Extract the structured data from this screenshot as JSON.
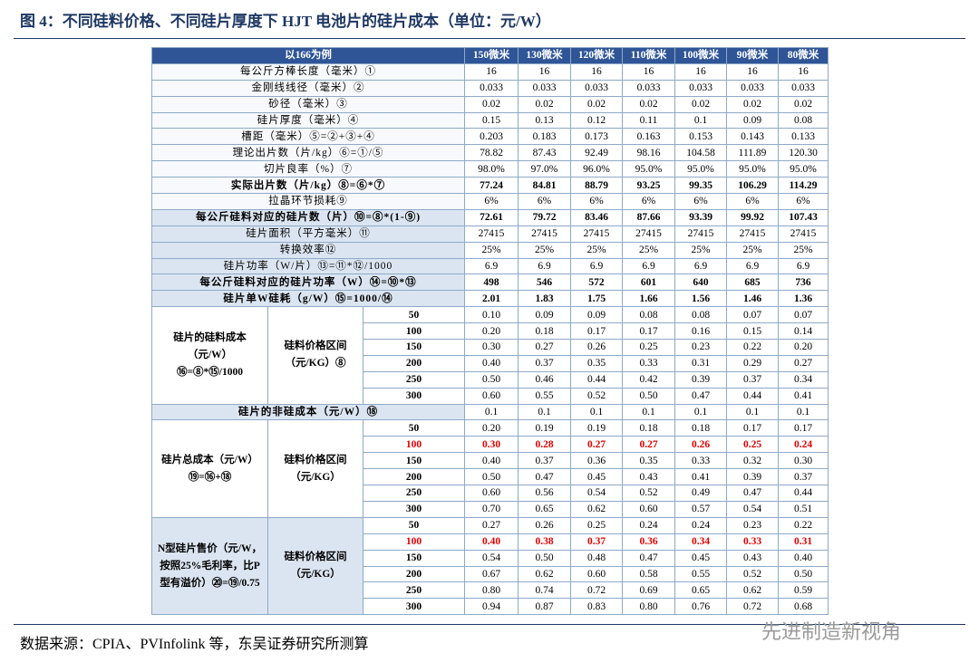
{
  "title": "图 4：不同硅料价格、不同硅片厚度下 HJT 电池片的硅片成本（单位：元/W）",
  "table": {
    "header": {
      "label": "以166为例",
      "columns": [
        "150微米",
        "130微米",
        "120微米",
        "110微米",
        "100微米",
        "90微米",
        "80微米"
      ]
    },
    "rows": [
      {
        "label": "每公斤方棒长度（毫米）①",
        "values": [
          "16",
          "16",
          "16",
          "16",
          "16",
          "16",
          "16"
        ]
      },
      {
        "label": "金刚线线径（毫米）②",
        "values": [
          "0.033",
          "0.033",
          "0.033",
          "0.033",
          "0.033",
          "0.033",
          "0.033"
        ]
      },
      {
        "label": "砂径（毫米）③",
        "values": [
          "0.02",
          "0.02",
          "0.02",
          "0.02",
          "0.02",
          "0.02",
          "0.02"
        ]
      },
      {
        "label": "硅片厚度（毫米）④",
        "values": [
          "0.15",
          "0.13",
          "0.12",
          "0.11",
          "0.1",
          "0.09",
          "0.08"
        ]
      },
      {
        "label": "槽距（毫米）⑤=②+③+④",
        "values": [
          "0.203",
          "0.183",
          "0.173",
          "0.163",
          "0.153",
          "0.143",
          "0.133"
        ]
      },
      {
        "label": "理论出片数（片/kg）⑥=①/⑤",
        "values": [
          "78.82",
          "87.43",
          "92.49",
          "98.16",
          "104.58",
          "111.89",
          "120.30"
        ]
      },
      {
        "label": "切片良率（%）⑦",
        "values": [
          "98.0%",
          "97.0%",
          "96.0%",
          "95.0%",
          "95.0%",
          "95.0%",
          "95.0%"
        ]
      },
      {
        "label": "实际出片数（片/kg）⑧=⑥*⑦",
        "values": [
          "77.24",
          "84.81",
          "88.79",
          "93.25",
          "99.35",
          "106.29",
          "114.29"
        ]
      },
      {
        "label": "拉晶环节损耗⑨",
        "values": [
          "6%",
          "6%",
          "6%",
          "6%",
          "6%",
          "6%",
          "6%"
        ]
      },
      {
        "label": "每公斤硅料对应的硅片数（片）⑩=⑧*(1-⑨)",
        "values": [
          "72.61",
          "79.72",
          "83.46",
          "87.66",
          "93.39",
          "99.92",
          "107.43"
        ]
      },
      {
        "label": "硅片面积（平方毫米）⑪",
        "values": [
          "27415",
          "27415",
          "27415",
          "27415",
          "27415",
          "27415",
          "27415"
        ]
      },
      {
        "label": "转换效率⑫",
        "values": [
          "25%",
          "25%",
          "25%",
          "25%",
          "25%",
          "25%",
          "25%"
        ]
      },
      {
        "label": "硅片功率（W/片）⑬=⑪*⑫/1000",
        "values": [
          "6.9",
          "6.9",
          "6.9",
          "6.9",
          "6.9",
          "6.9",
          "6.9"
        ]
      },
      {
        "label": "每公斤硅料对应的硅片功率（W）⑭=⑩*⑬",
        "values": [
          "498",
          "546",
          "572",
          "601",
          "640",
          "685",
          "736"
        ]
      },
      {
        "label": "硅片单W硅耗（g/W）⑮=1000/⑭",
        "values": [
          "2.01",
          "1.83",
          "1.75",
          "1.66",
          "1.56",
          "1.46",
          "1.36"
        ]
      }
    ],
    "silicon_cost": {
      "label": "硅片的硅料成本（元/W）⑯=⑧*⑮/1000",
      "range_label": "硅料价格区间（元/KG）⑧",
      "rows": [
        {
          "price": "50",
          "values": [
            "0.10",
            "0.09",
            "0.09",
            "0.08",
            "0.08",
            "0.07",
            "0.07"
          ]
        },
        {
          "price": "100",
          "values": [
            "0.20",
            "0.18",
            "0.17",
            "0.17",
            "0.16",
            "0.15",
            "0.14"
          ]
        },
        {
          "price": "150",
          "values": [
            "0.30",
            "0.27",
            "0.26",
            "0.25",
            "0.23",
            "0.22",
            "0.20"
          ]
        },
        {
          "price": "200",
          "values": [
            "0.40",
            "0.37",
            "0.35",
            "0.33",
            "0.31",
            "0.29",
            "0.27"
          ]
        },
        {
          "price": "250",
          "values": [
            "0.50",
            "0.46",
            "0.44",
            "0.42",
            "0.39",
            "0.37",
            "0.34"
          ]
        },
        {
          "price": "300",
          "values": [
            "0.60",
            "0.55",
            "0.52",
            "0.50",
            "0.47",
            "0.44",
            "0.41"
          ]
        }
      ]
    },
    "non_silicon": {
      "label": "硅片的非硅成本（元/W）⑱",
      "values": [
        "0.1",
        "0.1",
        "0.1",
        "0.1",
        "0.1",
        "0.1",
        "0.1"
      ]
    },
    "total_cost": {
      "label": "硅片总成本（元/W）⑲=⑯+⑱",
      "range_label": "硅料价格区间（元/KG）",
      "rows": [
        {
          "price": "50",
          "values": [
            "0.20",
            "0.19",
            "0.19",
            "0.18",
            "0.18",
            "0.17",
            "0.17"
          ]
        },
        {
          "price": "100",
          "values": [
            "0.30",
            "0.28",
            "0.27",
            "0.27",
            "0.26",
            "0.25",
            "0.24"
          ]
        },
        {
          "price": "150",
          "values": [
            "0.40",
            "0.37",
            "0.36",
            "0.35",
            "0.33",
            "0.32",
            "0.30"
          ]
        },
        {
          "price": "200",
          "values": [
            "0.50",
            "0.47",
            "0.45",
            "0.43",
            "0.41",
            "0.39",
            "0.37"
          ]
        },
        {
          "price": "250",
          "values": [
            "0.60",
            "0.56",
            "0.54",
            "0.52",
            "0.49",
            "0.47",
            "0.44"
          ]
        },
        {
          "price": "300",
          "values": [
            "0.70",
            "0.65",
            "0.62",
            "0.60",
            "0.57",
            "0.54",
            "0.51"
          ]
        }
      ]
    },
    "n_type_price": {
      "label": "N型硅片售价（元/W，按照25%毛利率，比P型有溢价）⑳=⑲/0.75",
      "range_label": "硅料价格区间（元/KG）",
      "rows": [
        {
          "price": "50",
          "values": [
            "0.27",
            "0.26",
            "0.25",
            "0.24",
            "0.24",
            "0.23",
            "0.22"
          ]
        },
        {
          "price": "100",
          "values": [
            "0.40",
            "0.38",
            "0.37",
            "0.36",
            "0.34",
            "0.33",
            "0.31"
          ]
        },
        {
          "price": "150",
          "values": [
            "0.54",
            "0.50",
            "0.48",
            "0.47",
            "0.45",
            "0.43",
            "0.40"
          ]
        },
        {
          "price": "200",
          "values": [
            "0.67",
            "0.62",
            "0.60",
            "0.58",
            "0.55",
            "0.52",
            "0.50"
          ]
        },
        {
          "price": "250",
          "values": [
            "0.80",
            "0.74",
            "0.72",
            "0.69",
            "0.65",
            "0.62",
            "0.59"
          ]
        },
        {
          "price": "300",
          "values": [
            "0.94",
            "0.87",
            "0.83",
            "0.80",
            "0.76",
            "0.72",
            "0.68"
          ]
        }
      ]
    }
  },
  "source": "数据来源：CPIA、PVInfolink 等，东吴证券研究所测算",
  "watermark": "先进制造新视角"
}
